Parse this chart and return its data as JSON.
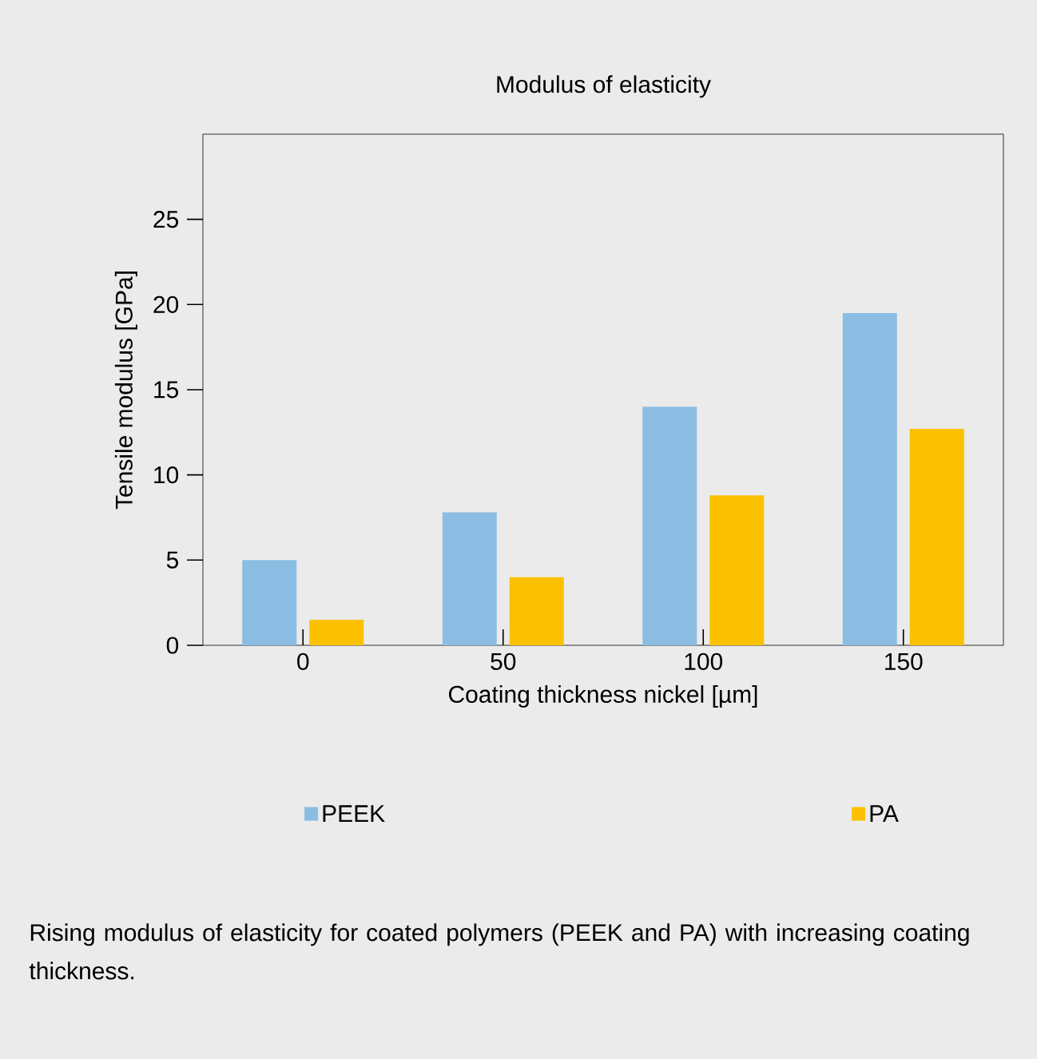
{
  "chart_data": {
    "type": "bar",
    "title": "Modulus of elasticity",
    "xlabel": "Coating thickness nickel [µm]",
    "ylabel": "Tensile modulus [GPa]",
    "categories": [
      "0",
      "50",
      "100",
      "150"
    ],
    "series": [
      {
        "name": "PEEK",
        "color": "#8bbde3",
        "values": [
          5.0,
          7.8,
          14.0,
          19.5
        ]
      },
      {
        "name": "PA",
        "color": "#fbc100",
        "values": [
          1.5,
          4.0,
          8.8,
          12.7
        ]
      }
    ],
    "ylim": [
      0,
      30
    ],
    "yticks": [
      0,
      5,
      10,
      15,
      20,
      25
    ],
    "legend": "bottom",
    "annotations": [
      "Rising modulus of elasticity for coated polymers (PEEK and PA) with increasing coating thickness."
    ]
  }
}
